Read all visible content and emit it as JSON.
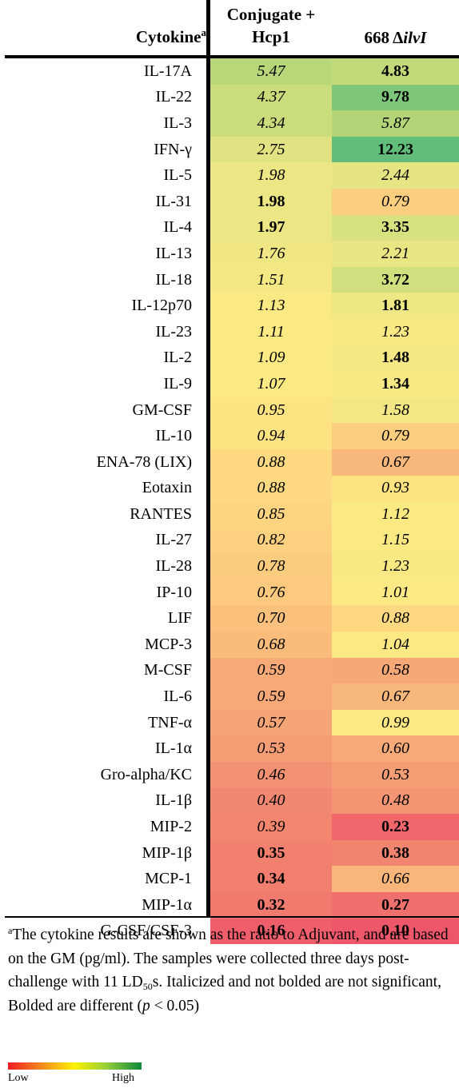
{
  "header": {
    "cytokine_label": "Cytokine",
    "cytokine_footnote_mark": "a",
    "col1_label": "Conjugate + Hcp1",
    "col2_prefix": "668 Δ",
    "col2_italic": "ilvI"
  },
  "rows": [
    {
      "name": "IL-17A",
      "v1": "5.47",
      "s1": false,
      "c1": "#b9d778",
      "v2": "4.83",
      "s2": true,
      "c2": "#c2da7a"
    },
    {
      "name": "IL-22",
      "v1": "4.37",
      "s1": false,
      "c1": "#c9dd7c",
      "v2": "9.78",
      "s2": true,
      "c2": "#7ec67a"
    },
    {
      "name": "IL-3",
      "v1": "4.34",
      "s1": false,
      "c1": "#c9dd7c",
      "v2": "5.87",
      "s2": false,
      "c2": "#b4d577"
    },
    {
      "name": "IFN-γ",
      "v1": "2.75",
      "s1": false,
      "c1": "#e1e382",
      "v2": "12.23",
      "s2": true,
      "c2": "#62bd7b"
    },
    {
      "name": "IL-5",
      "v1": "1.98",
      "s1": false,
      "c1": "#ede684",
      "v2": "2.44",
      "s2": false,
      "c2": "#e6e583"
    },
    {
      "name": "IL-31",
      "v1": "1.98",
      "s1": true,
      "c1": "#ede684",
      "v2": "0.79",
      "s2": false,
      "c2": "#fbcd7f"
    },
    {
      "name": "IL-4",
      "v1": "1.97",
      "s1": true,
      "c1": "#ede684",
      "v2": "3.35",
      "s2": true,
      "c2": "#d8e180"
    },
    {
      "name": "IL-13",
      "v1": "1.76",
      "s1": false,
      "c1": "#f0e784",
      "v2": "2.21",
      "s2": false,
      "c2": "#e9e583"
    },
    {
      "name": "IL-18",
      "v1": "1.51",
      "s1": false,
      "c1": "#f3e884",
      "v2": "3.72",
      "s2": true,
      "c2": "#d2df7e"
    },
    {
      "name": "IL-12p70",
      "v1": "1.13",
      "s1": false,
      "c1": "#fbea84",
      "v2": "1.81",
      "s2": true,
      "c2": "#efe784"
    },
    {
      "name": "IL-23",
      "v1": "1.11",
      "s1": false,
      "c1": "#fbea84",
      "v2": "1.23",
      "s2": false,
      "c2": "#f9e984"
    },
    {
      "name": "IL-2",
      "v1": "1.09",
      "s1": false,
      "c1": "#fbea84",
      "v2": "1.48",
      "s2": true,
      "c2": "#f4e884"
    },
    {
      "name": "IL-9",
      "v1": "1.07",
      "s1": false,
      "c1": "#fbea84",
      "v2": "1.34",
      "s2": true,
      "c2": "#f7e984"
    },
    {
      "name": "GM-CSF",
      "v1": "0.95",
      "s1": false,
      "c1": "#fee382",
      "v2": "1.58",
      "s2": false,
      "c2": "#f2e784"
    },
    {
      "name": "IL-10",
      "v1": "0.94",
      "s1": false,
      "c1": "#fee382",
      "v2": "0.79",
      "s2": false,
      "c2": "#fbcd7f"
    },
    {
      "name": "ENA-78 (LIX)",
      "v1": "0.88",
      "s1": false,
      "c1": "#fed981",
      "v2": "0.67",
      "s2": false,
      "c2": "#f9b87b"
    },
    {
      "name": "Eotaxin",
      "v1": "0.88",
      "s1": false,
      "c1": "#fed981",
      "v2": "0.93",
      "s2": false,
      "c2": "#fde282"
    },
    {
      "name": "RANTES",
      "v1": "0.85",
      "s1": false,
      "c1": "#fdd580",
      "v2": "1.12",
      "s2": false,
      "c2": "#fbea84"
    },
    {
      "name": "IL-27",
      "v1": "0.82",
      "s1": false,
      "c1": "#fdd17f",
      "v2": "1.15",
      "s2": false,
      "c2": "#fbea84"
    },
    {
      "name": "IL-28",
      "v1": "0.78",
      "s1": false,
      "c1": "#fccc7e",
      "v2": "1.23",
      "s2": false,
      "c2": "#f9e984"
    },
    {
      "name": "IP-10",
      "v1": "0.76",
      "s1": false,
      "c1": "#fcc97e",
      "v2": "1.01",
      "s2": false,
      "c2": "#feea84"
    },
    {
      "name": "LIF",
      "v1": "0.70",
      "s1": false,
      "c1": "#fac07c",
      "v2": "0.88",
      "s2": false,
      "c2": "#fed981"
    },
    {
      "name": "MCP-3",
      "v1": "0.68",
      "s1": false,
      "c1": "#f9bc7b",
      "v2": "1.04",
      "s2": false,
      "c2": "#fde984"
    },
    {
      "name": "M-CSF",
      "v1": "0.59",
      "s1": false,
      "c1": "#f7a977",
      "v2": "0.58",
      "s2": false,
      "c2": "#f7a877"
    },
    {
      "name": "IL-6",
      "v1": "0.59",
      "s1": false,
      "c1": "#f7a977",
      "v2": "0.67",
      "s2": false,
      "c2": "#f9b87b"
    },
    {
      "name": "TNF-α",
      "v1": "0.57",
      "s1": false,
      "c1": "#f6a676",
      "v2": "0.99",
      "s2": false,
      "c2": "#fee883"
    },
    {
      "name": "IL-1α",
      "v1": "0.53",
      "s1": false,
      "c1": "#f59e75",
      "v2": "0.60",
      "s2": false,
      "c2": "#f7aa77"
    },
    {
      "name": "Gro-alpha/KC",
      "v1": "0.46",
      "s1": false,
      "c1": "#f39273",
      "v2": "0.53",
      "s2": false,
      "c2": "#f59e75"
    },
    {
      "name": "IL-1β",
      "v1": "0.40",
      "s1": false,
      "c1": "#f28871",
      "v2": "0.48",
      "s2": false,
      "c2": "#f39573"
    },
    {
      "name": "MIP-2",
      "v1": "0.39",
      "s1": false,
      "c1": "#f2866f",
      "v2": "0.23",
      "s2": true,
      "c2": "#f0686c"
    },
    {
      "name": "MIP-1β",
      "v1": "0.35",
      "s1": true,
      "c1": "#f1806e",
      "v2": "0.38",
      "s2": true,
      "c2": "#f2856f"
    },
    {
      "name": "MCP-1",
      "v1": "0.34",
      "s1": true,
      "c1": "#f17e6e",
      "v2": "0.66",
      "s2": false,
      "c2": "#f9b67b"
    },
    {
      "name": "MIP-1α",
      "v1": "0.32",
      "s1": true,
      "c1": "#f17a6e",
      "v2": "0.27",
      "s2": true,
      "c2": "#f0706d"
    },
    {
      "name": "G-CSF/CSF-3",
      "v1": "0.16",
      "s1": true,
      "c1": "#ef5e6b",
      "v2": "0.10",
      "s2": true,
      "c2": "#ee566a"
    }
  ],
  "footnote": {
    "mark": "a",
    "text_a": "The cytokine results are shown as the ratio to Adjuvant, and are based on the GM (pg/ml).  The samples were collected three days post-challenge with 11 LD",
    "sub": "50",
    "text_b": "s. Italicized and not bolded are not significant, Bolded are different  (",
    "p": "p",
    "text_c": " < 0.05)"
  },
  "legend": {
    "low": "Low",
    "high": "High",
    "gradient_colors": [
      "#ee1c24",
      "#f4891f",
      "#fdf200",
      "#8fcb3c",
      "#0e8a3c"
    ]
  }
}
